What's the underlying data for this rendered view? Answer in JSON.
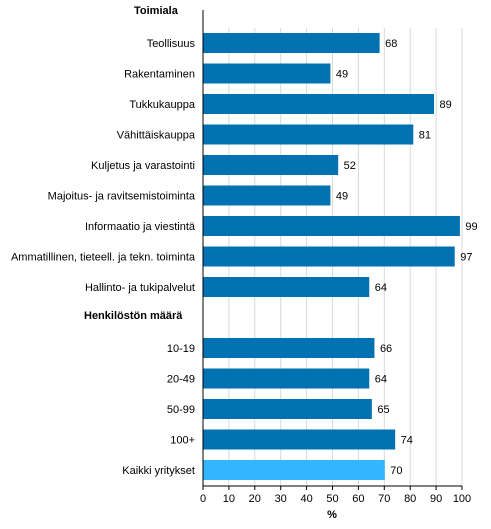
{
  "chart_data": {
    "type": "bar",
    "orientation": "horizontal",
    "xlabel": "%",
    "xlim": [
      0,
      100
    ],
    "xticks": [
      "0",
      "10",
      "20",
      "30",
      "40",
      "50",
      "60",
      "70",
      "80",
      "90",
      "100"
    ],
    "grid": true,
    "sections": [
      {
        "title": "Toimiala",
        "categories": [
          "Teollisuus",
          "Rakentaminen",
          "Tukkukauppa",
          "Vähittäiskauppa",
          "Kuljetus ja varastointi",
          "Majoitus- ja ravitsemistoiminta",
          "Informaatio ja viestintä",
          "Ammatillinen, tieteell. ja tekn. toiminta",
          "Hallinto- ja tukipalvelut"
        ],
        "values": [
          68,
          49,
          89,
          81,
          52,
          49,
          99,
          97,
          64
        ]
      },
      {
        "title": "Henkilöstön määrä",
        "categories": [
          "10-19",
          "20-49",
          "50-99",
          "100+",
          "Kaikki yritykset"
        ],
        "values": [
          66,
          64,
          65,
          74,
          70
        ]
      }
    ],
    "colors": {
      "bar": "#0072b2",
      "total_bar": "#33b5ff",
      "grid": "#d9d9d9"
    }
  }
}
